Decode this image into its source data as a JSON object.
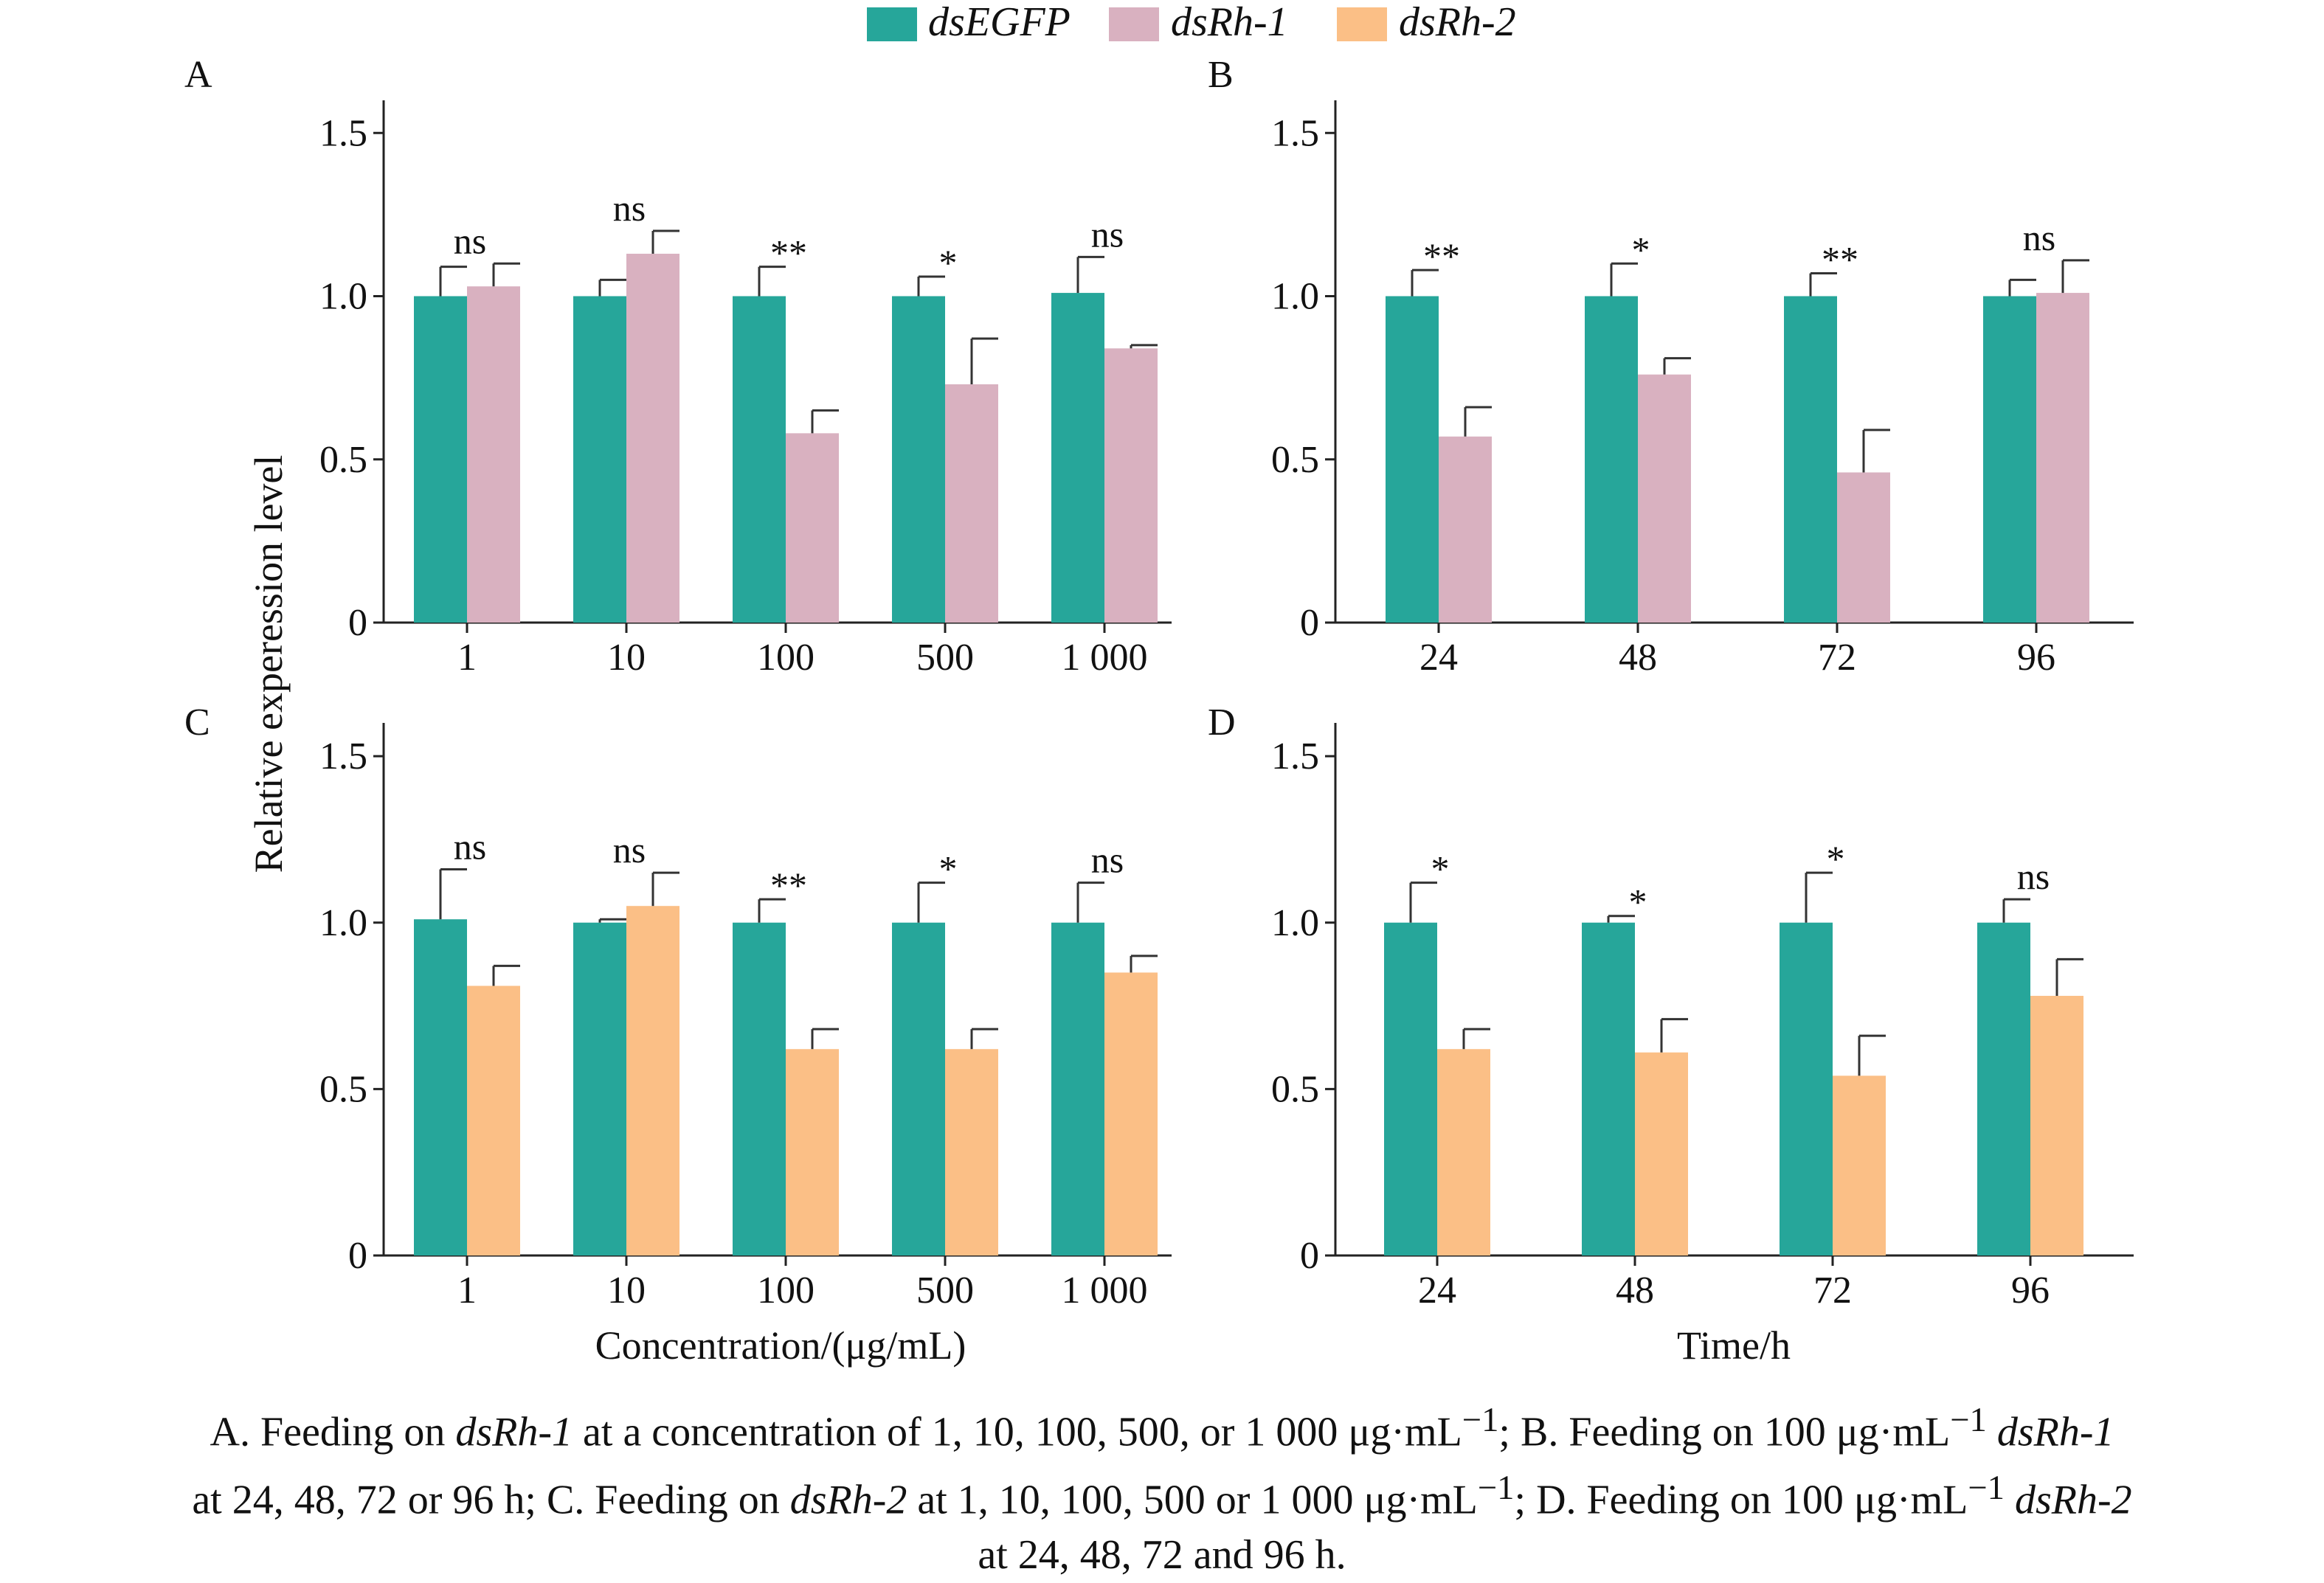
{
  "legend": [
    {
      "name": "dsEGFP",
      "color": "#26a69a"
    },
    {
      "name": "dsRh-1",
      "color": "#d9b1c0"
    },
    {
      "name": "dsRh-2",
      "color": "#fbbf86"
    }
  ],
  "y_axis_label": "Relative experession level",
  "chart_data": [
    {
      "id": "A",
      "type": "bar",
      "panel_label": "A",
      "categories": [
        "1",
        "10",
        "100",
        "500",
        "1 000"
      ],
      "xlabel": "",
      "ylabel": "Relative experession level",
      "ylim": [
        0,
        1.6
      ],
      "yticks": [
        {
          "value": 0,
          "label": "0"
        },
        {
          "value": 0.5,
          "label": "0.5"
        },
        {
          "value": 1.0,
          "label": "1.0"
        },
        {
          "value": 1.5,
          "label": "1.5"
        }
      ],
      "series": [
        {
          "name": "dsEGFP",
          "values": [
            1.0,
            1.0,
            1.0,
            1.0,
            1.01
          ],
          "errors": [
            0.09,
            0.05,
            0.09,
            0.06,
            0.11
          ]
        },
        {
          "name": "dsRh-1",
          "values": [
            1.03,
            1.13,
            0.58,
            0.73,
            0.84
          ],
          "errors": [
            0.07,
            0.07,
            0.07,
            0.14,
            0.01
          ]
        }
      ],
      "significance": [
        "ns",
        "ns",
        "**",
        "*",
        "ns"
      ]
    },
    {
      "id": "B",
      "type": "bar",
      "panel_label": "B",
      "categories": [
        "24",
        "48",
        "72",
        "96"
      ],
      "xlabel": "",
      "ylabel": "",
      "ylim": [
        0,
        1.6
      ],
      "yticks": [
        {
          "value": 0,
          "label": "0"
        },
        {
          "value": 0.5,
          "label": "0.5"
        },
        {
          "value": 1.0,
          "label": "1.0"
        },
        {
          "value": 1.5,
          "label": "1.5"
        }
      ],
      "series": [
        {
          "name": "dsEGFP",
          "values": [
            1.0,
            1.0,
            1.0,
            1.0
          ],
          "errors": [
            0.08,
            0.1,
            0.07,
            0.05
          ]
        },
        {
          "name": "dsRh-1",
          "values": [
            0.57,
            0.76,
            0.46,
            1.01
          ],
          "errors": [
            0.09,
            0.05,
            0.13,
            0.1
          ]
        }
      ],
      "significance": [
        "**",
        "*",
        "**",
        "ns"
      ]
    },
    {
      "id": "C",
      "type": "bar",
      "panel_label": "C",
      "categories": [
        "1",
        "10",
        "100",
        "500",
        "1 000"
      ],
      "xlabel": "Concentration/(μg/mL)",
      "ylabel": "",
      "ylim": [
        0,
        1.6
      ],
      "yticks": [
        {
          "value": 0,
          "label": "0"
        },
        {
          "value": 0.5,
          "label": "0.5"
        },
        {
          "value": 1.0,
          "label": "1.0"
        },
        {
          "value": 1.5,
          "label": "1.5"
        }
      ],
      "series": [
        {
          "name": "dsEGFP",
          "values": [
            1.01,
            1.0,
            1.0,
            1.0,
            1.0
          ],
          "errors": [
            0.15,
            0.01,
            0.07,
            0.12,
            0.12
          ]
        },
        {
          "name": "dsRh-2",
          "values": [
            0.81,
            1.05,
            0.62,
            0.62,
            0.85
          ],
          "errors": [
            0.06,
            0.1,
            0.06,
            0.06,
            0.05
          ]
        }
      ],
      "significance": [
        "ns",
        "ns",
        "**",
        "*",
        "ns"
      ]
    },
    {
      "id": "D",
      "type": "bar",
      "panel_label": "D",
      "categories": [
        "24",
        "48",
        "72",
        "96"
      ],
      "xlabel": "Time/h",
      "ylabel": "",
      "ylim": [
        0,
        1.6
      ],
      "yticks": [
        {
          "value": 0,
          "label": "0"
        },
        {
          "value": 0.5,
          "label": "0.5"
        },
        {
          "value": 1.0,
          "label": "1.0"
        },
        {
          "value": 1.5,
          "label": "1.5"
        }
      ],
      "series": [
        {
          "name": "dsEGFP",
          "values": [
            1.0,
            1.0,
            1.0,
            1.0
          ],
          "errors": [
            0.12,
            0.02,
            0.15,
            0.07
          ]
        },
        {
          "name": "dsRh-2",
          "values": [
            0.62,
            0.61,
            0.54,
            0.78
          ],
          "errors": [
            0.06,
            0.1,
            0.12,
            0.11
          ]
        }
      ],
      "significance": [
        "*",
        "*",
        "*",
        "ns"
      ]
    }
  ],
  "caption": {
    "line1_a": "A. Feeding on ",
    "line1_b": "dsRh-1",
    "line1_c": " at a concentration of 1, 10, 100, 500, or 1 000 μg·mL",
    "line1_d": "−1",
    "line1_e": "; B. Feeding on 100 μg·mL",
    "line1_f": "−1",
    "line1_g": " ",
    "line1_h": "dsRh-1",
    "line2_a": "at 24, 48, 72 or 96 h; C. Feeding on ",
    "line2_b": "dsRh-2",
    "line2_c": " at 1, 10, 100, 500 or 1 000 μg·mL",
    "line2_d": "−1",
    "line2_e": "; D. Feeding on 100 μg·mL",
    "line2_f": "−1",
    "line2_g": " ",
    "line2_h": "dsRh-2",
    "line3": "at 24, 48, 72 and 96 h."
  }
}
